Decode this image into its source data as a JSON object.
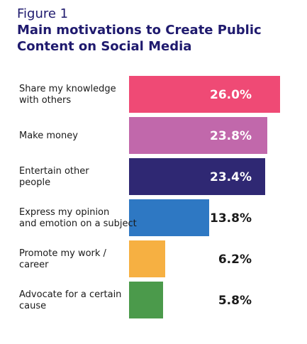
{
  "figure_label": "Figure 1",
  "chart_data": {
    "type": "bar",
    "orientation": "horizontal",
    "title": "Main motivations to Create Public Content on Social Media",
    "categories": [
      [
        "Share my knowledge",
        "with others"
      ],
      [
        "Make money"
      ],
      [
        "Entertain other",
        "people"
      ],
      [
        "Express my opinion",
        "and emotion on a subject"
      ],
      [
        "Promote my work /",
        "career"
      ],
      [
        "Advocate for a certain",
        "cause"
      ]
    ],
    "values": [
      26.0,
      23.8,
      23.4,
      13.8,
      6.2,
      5.8
    ],
    "value_labels": [
      "26.0%",
      "23.8%",
      "23.4%",
      "13.8%",
      "6.2%",
      "5.8%"
    ],
    "colors": [
      "#ef4a75",
      "#c168ab",
      "#2f2873",
      "#2e78c3",
      "#f6b042",
      "#4b9a4b"
    ],
    "label_inside": [
      true,
      true,
      true,
      false,
      false,
      false
    ],
    "xlim": [
      0,
      26.0
    ],
    "grid": false,
    "legend": "none"
  }
}
